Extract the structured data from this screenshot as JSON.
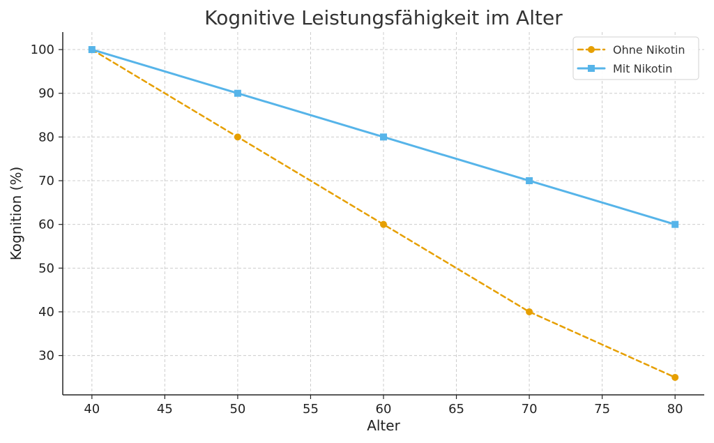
{
  "chart_data": {
    "type": "line",
    "title": "Kognitive Leistungsfähigkeit im Alter",
    "xlabel": "Alter",
    "ylabel": "Kognition (%)",
    "x": [
      40,
      50,
      60,
      70,
      80
    ],
    "xlim": [
      38,
      82
    ],
    "ylim": [
      21,
      104
    ],
    "x_ticks": [
      40,
      45,
      50,
      55,
      60,
      65,
      70,
      75,
      80
    ],
    "y_ticks": [
      30,
      40,
      50,
      60,
      70,
      80,
      90,
      100
    ],
    "grid": true,
    "legend_position": "top-right",
    "series": [
      {
        "name": "Ohne Nikotin",
        "values": [
          100,
          80,
          60,
          40,
          25
        ],
        "color": "#E69F00",
        "line_style": "dashed",
        "marker": "circle"
      },
      {
        "name": "Mit Nikotin",
        "values": [
          100,
          90,
          80,
          70,
          60
        ],
        "color": "#56B4E9",
        "line_style": "solid",
        "marker": "square"
      }
    ]
  }
}
